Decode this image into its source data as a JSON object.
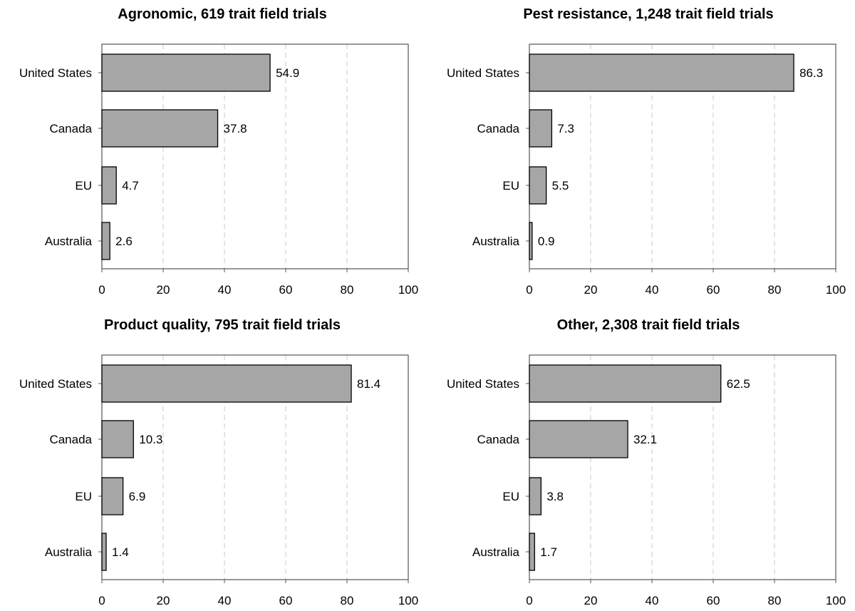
{
  "chart_data": [
    {
      "type": "bar",
      "orientation": "horizontal",
      "title": "Agronomic, 619 trait field trials",
      "categories": [
        "United States",
        "Canada",
        "EU",
        "Australia"
      ],
      "values": [
        54.9,
        37.8,
        4.7,
        2.6
      ],
      "value_labels": [
        "54.9",
        "37.8",
        "4.7",
        "2.6"
      ],
      "xlim": [
        0,
        100
      ],
      "xticks": [
        "0",
        "20",
        "40",
        "60",
        "80",
        "100"
      ],
      "grid": "vertical dashed",
      "bar_color": "#a6a6a6"
    },
    {
      "type": "bar",
      "orientation": "horizontal",
      "title": "Pest resistance, 1,248 trait field trials",
      "categories": [
        "United States",
        "Canada",
        "EU",
        "Australia"
      ],
      "values": [
        86.3,
        7.3,
        5.5,
        0.9
      ],
      "value_labels": [
        "86.3",
        "7.3",
        "5.5",
        "0.9"
      ],
      "xlim": [
        0,
        100
      ],
      "xticks": [
        "0",
        "20",
        "40",
        "60",
        "80",
        "100"
      ],
      "grid": "vertical dashed",
      "bar_color": "#a6a6a6"
    },
    {
      "type": "bar",
      "orientation": "horizontal",
      "title": "Product quality, 795 trait field trials",
      "categories": [
        "United States",
        "Canada",
        "EU",
        "Australia"
      ],
      "values": [
        81.4,
        10.3,
        6.9,
        1.4
      ],
      "value_labels": [
        "81.4",
        "10.3",
        "6.9",
        "1.4"
      ],
      "xlim": [
        0,
        100
      ],
      "xticks": [
        "0",
        "20",
        "40",
        "60",
        "80",
        "100"
      ],
      "grid": "vertical dashed",
      "bar_color": "#a6a6a6"
    },
    {
      "type": "bar",
      "orientation": "horizontal",
      "title": "Other, 2,308 trait field trials",
      "categories": [
        "United States",
        "Canada",
        "EU",
        "Australia"
      ],
      "values": [
        62.5,
        32.1,
        3.8,
        1.7
      ],
      "value_labels": [
        "62.5",
        "32.1",
        "3.8",
        "1.7"
      ],
      "xlim": [
        0,
        100
      ],
      "xticks": [
        "0",
        "20",
        "40",
        "60",
        "80",
        "100"
      ],
      "grid": "vertical dashed",
      "bar_color": "#a6a6a6"
    }
  ]
}
